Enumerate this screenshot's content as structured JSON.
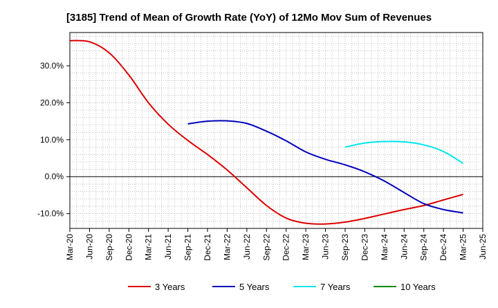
{
  "chart_data": {
    "type": "line",
    "title": "[3185]  Trend of Mean of Growth Rate (YoY) of 12Mo Mov Sum of Revenues",
    "xlabel": "",
    "ylabel": "",
    "ylim": [
      -14,
      39
    ],
    "y_ticks": [
      30,
      20,
      10,
      0,
      -10
    ],
    "y_tick_labels": [
      "30.0%",
      "20.0%",
      "10.0%",
      "0.0%",
      "-10.0%"
    ],
    "x_tick_labels": [
      "Mar-20",
      "Jun-20",
      "Sep-20",
      "Dec-20",
      "Mar-21",
      "Jun-21",
      "Sep-21",
      "Dec-21",
      "Mar-22",
      "Jun-22",
      "Sep-22",
      "Dec-22",
      "Mar-23",
      "Jun-23",
      "Sep-23",
      "Dec-23",
      "Mar-24",
      "Jun-24",
      "Sep-24",
      "Dec-24",
      "Mar-25",
      "Jun-25"
    ],
    "grid": true,
    "legend_position": "bottom",
    "series": [
      {
        "name": "3 Years",
        "color": "#dd0000",
        "x": [
          "Mar-20",
          "Jun-20",
          "Sep-20",
          "Dec-20",
          "Mar-21",
          "Jun-21",
          "Sep-21",
          "Dec-21",
          "Mar-22",
          "Jun-22",
          "Sep-22",
          "Dec-22",
          "Mar-23",
          "Jun-23",
          "Sep-23",
          "Dec-23",
          "Mar-24",
          "Jun-24",
          "Sep-24",
          "Dec-24",
          "Mar-25"
        ],
        "values": [
          36.8,
          36.5,
          33.5,
          27.5,
          20.0,
          14.2,
          9.8,
          6.0,
          1.8,
          -3.0,
          -7.8,
          -11.2,
          -12.6,
          -12.8,
          -12.3,
          -11.3,
          -10.1,
          -8.9,
          -7.8,
          -6.3,
          -4.8
        ]
      },
      {
        "name": "5 Years",
        "color": "#0000bb",
        "x": [
          "Sep-21",
          "Dec-21",
          "Mar-22",
          "Jun-22",
          "Sep-22",
          "Dec-22",
          "Mar-23",
          "Jun-23",
          "Sep-23",
          "Dec-23",
          "Mar-24",
          "Jun-24",
          "Sep-24",
          "Dec-24",
          "Mar-25"
        ],
        "values": [
          14.3,
          15.0,
          15.1,
          14.4,
          12.3,
          9.7,
          6.7,
          4.7,
          3.2,
          1.3,
          -1.2,
          -4.3,
          -7.3,
          -8.9,
          -9.8
        ]
      },
      {
        "name": "7 Years",
        "color": "#00e5ee",
        "x": [
          "Sep-23",
          "Dec-23",
          "Mar-24",
          "Jun-24",
          "Sep-24",
          "Dec-24",
          "Mar-25"
        ],
        "values": [
          8.0,
          9.1,
          9.5,
          9.4,
          8.6,
          6.8,
          3.6
        ]
      },
      {
        "name": "10 Years",
        "color": "#008800",
        "x": [],
        "values": []
      }
    ]
  }
}
